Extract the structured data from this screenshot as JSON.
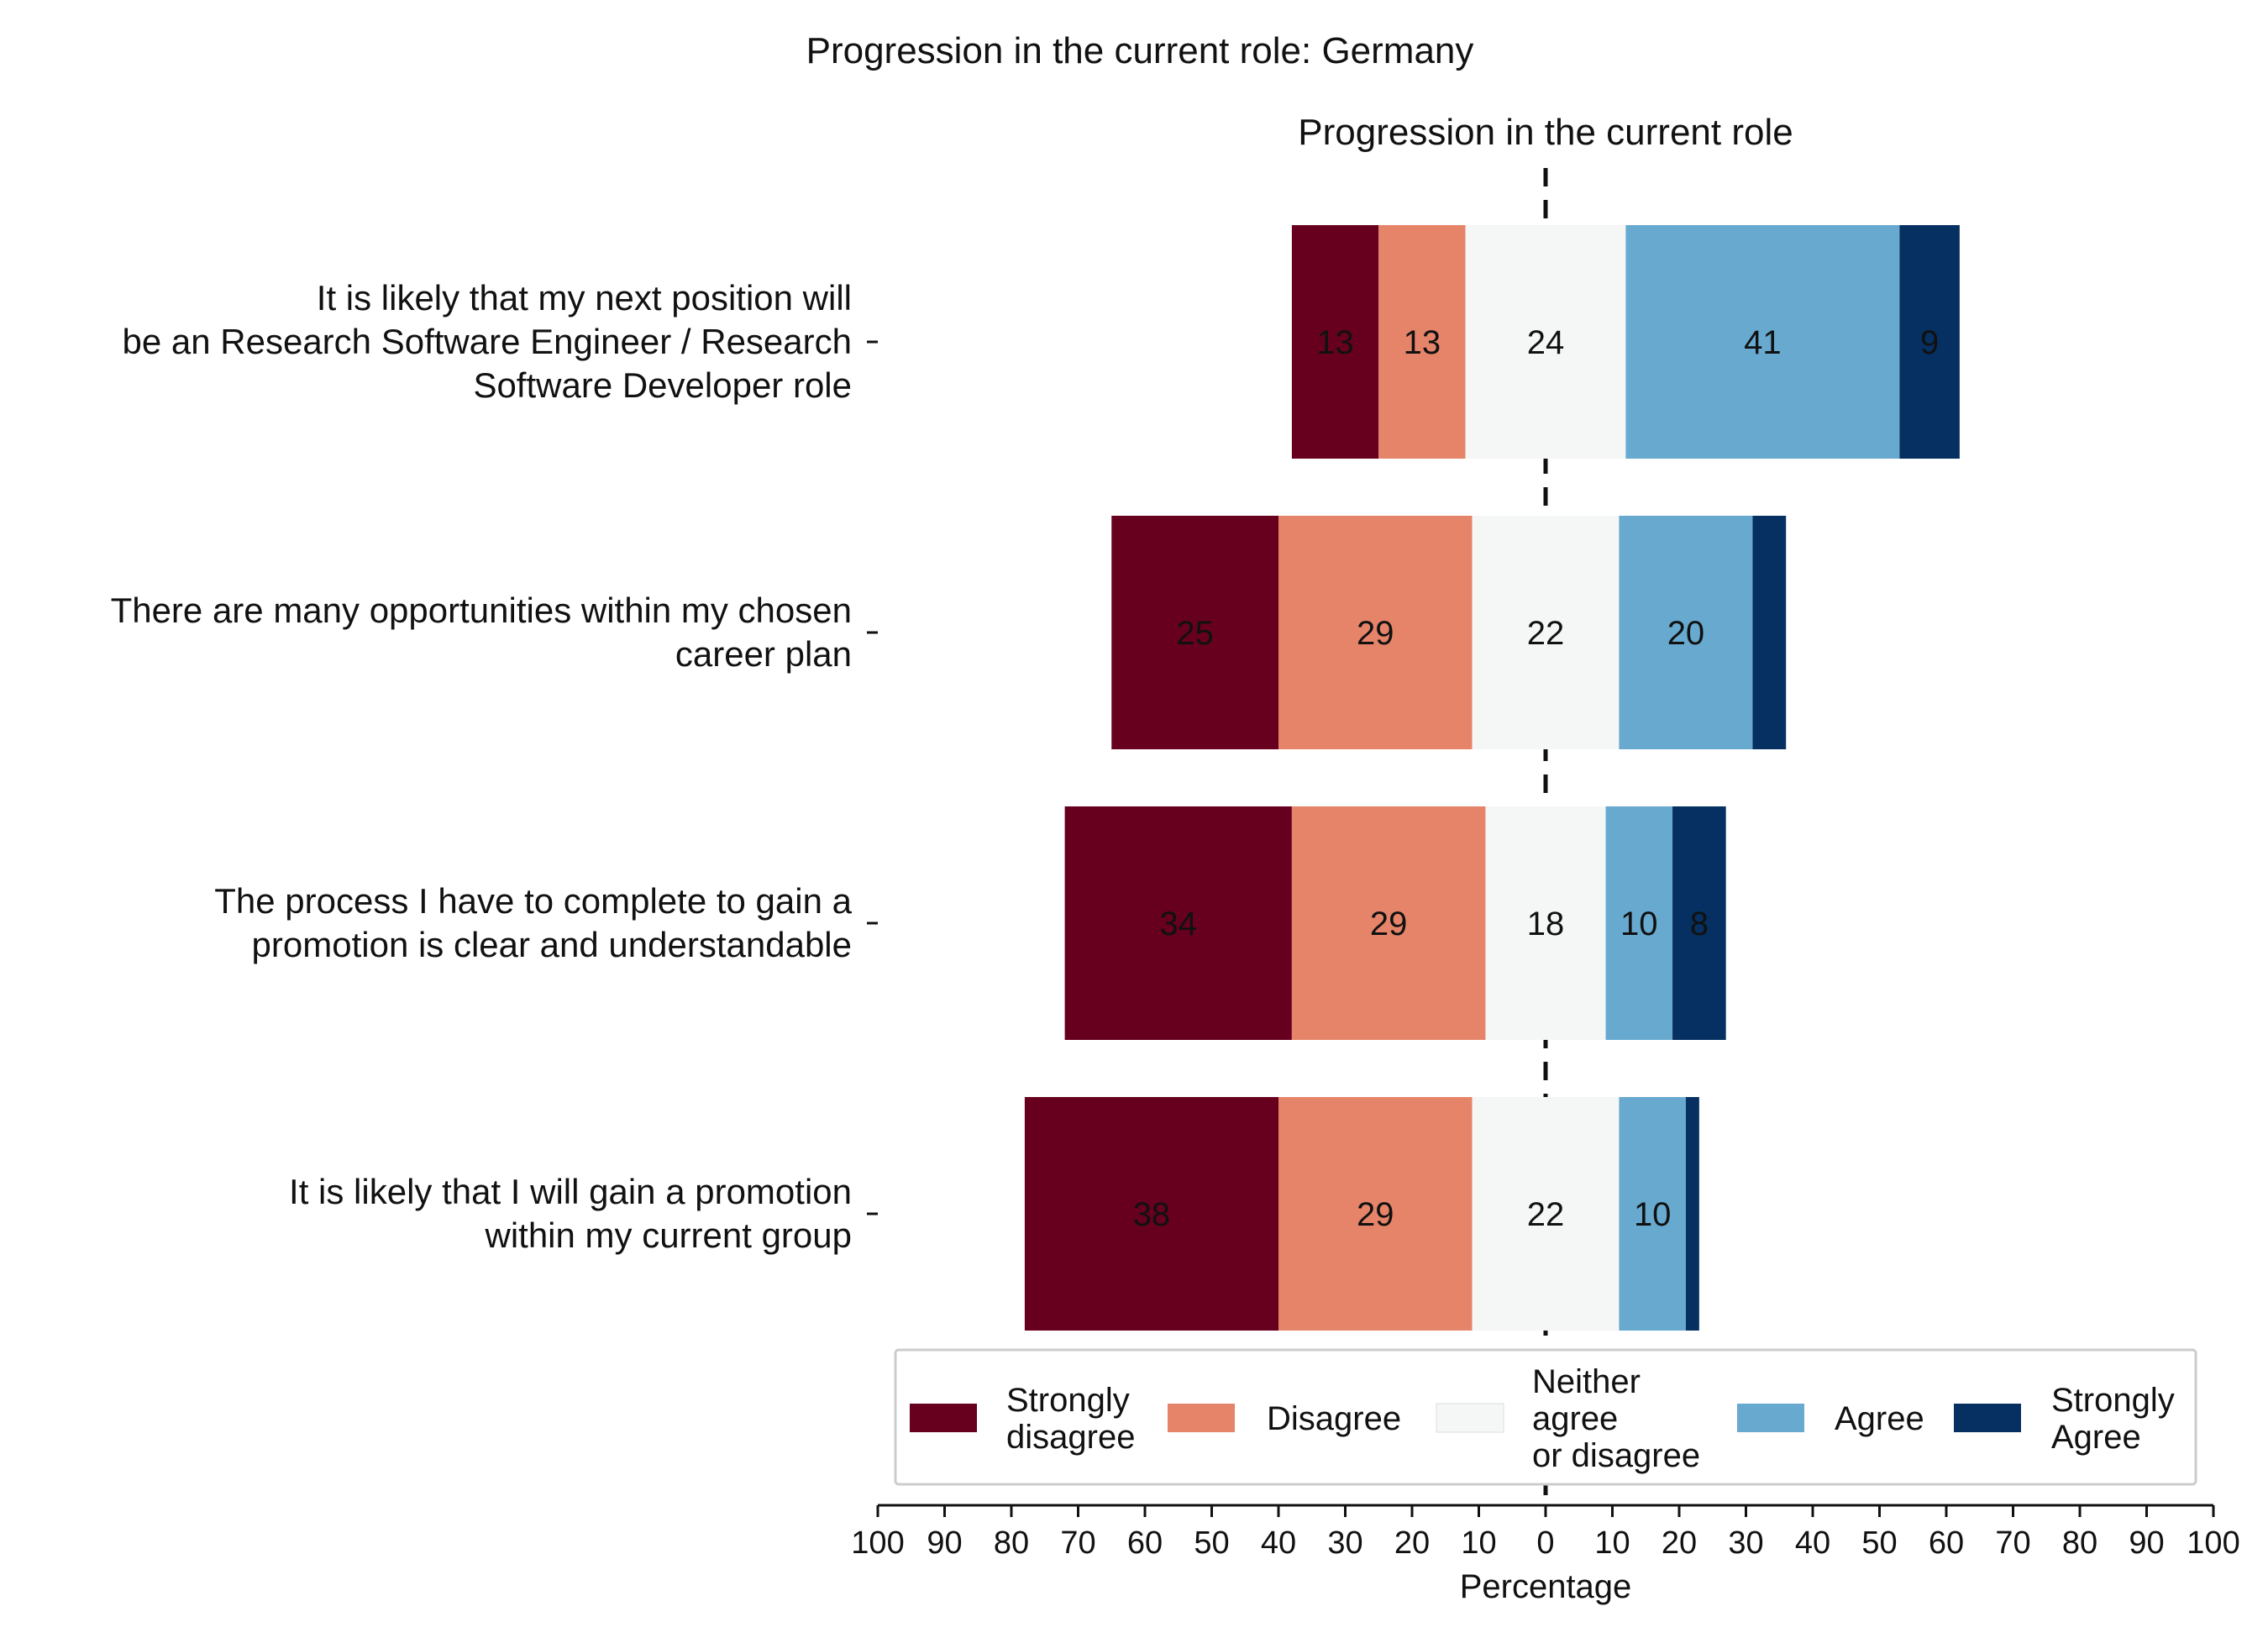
{
  "chart_data": {
    "type": "bar",
    "orientation": "horizontal",
    "stacked": "diverging",
    "title": "Progression in the current role: Germany",
    "subtitle": "Progression in the current role",
    "xlabel": "Percentage",
    "xlim": [
      -100,
      100
    ],
    "xtick_labels": [
      "100",
      "90",
      "80",
      "70",
      "60",
      "50",
      "40",
      "30",
      "20",
      "10",
      "0",
      "10",
      "20",
      "30",
      "40",
      "50",
      "60",
      "70",
      "80",
      "90",
      "100"
    ],
    "grid": false,
    "legend_position": "bottom",
    "categories": [
      [
        "It is likely that my next position will",
        "be an Research Software Engineer / Research",
        "Software Developer role"
      ],
      [
        "There are many opportunities within my chosen",
        "career plan"
      ],
      [
        "The process I have to complete to gain a",
        "promotion is clear and understandable"
      ],
      [
        "It is likely that I will gain a promotion",
        "within my current group"
      ]
    ],
    "series": [
      {
        "name": "Strongly\ndisagree",
        "color": "#67001f",
        "values": [
          13,
          25,
          34,
          38
        ]
      },
      {
        "name": "Disagree",
        "color": "#e6846a",
        "values": [
          13,
          29,
          29,
          29
        ]
      },
      {
        "name": "Neither\nagree\nor disagree",
        "color": "#f5f6f6",
        "values": [
          24,
          22,
          18,
          22
        ]
      },
      {
        "name": "Agree",
        "color": "#67a9cf",
        "values": [
          41,
          20,
          10,
          10
        ]
      },
      {
        "name": "Strongly\nAgree",
        "color": "#053061",
        "values": [
          9,
          5,
          8,
          2
        ]
      }
    ],
    "label_hidden": [
      [
        false,
        false,
        false,
        false,
        false
      ],
      [
        false,
        false,
        false,
        false,
        true
      ],
      [
        false,
        false,
        false,
        false,
        false
      ],
      [
        false,
        false,
        false,
        false,
        true
      ]
    ]
  }
}
